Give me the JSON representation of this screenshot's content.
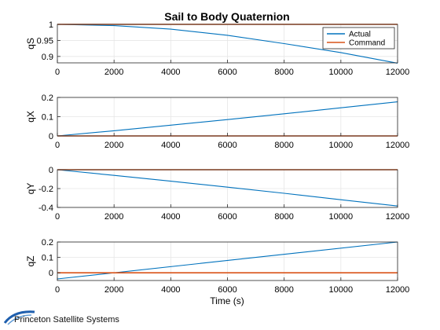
{
  "chart_data": {
    "type": "line",
    "title": "Sail to Body Quaternion",
    "xlabel": "Time (s)",
    "xlim": [
      0,
      12000
    ],
    "x_ticks": [
      "0",
      "2000",
      "4000",
      "6000",
      "8000",
      "10000",
      "12000"
    ],
    "grid": true,
    "legend": {
      "placement": "top-right",
      "entries": [
        "Actual",
        "Command"
      ]
    },
    "series_colors": {
      "Actual": "#0072BD",
      "Command": "#D95319"
    },
    "subplots": [
      {
        "ylabel": "qS",
        "ylim": [
          0.88,
          1.0
        ],
        "y_ticks": [
          {
            "v": 0.9,
            "t": "0.9"
          },
          {
            "v": 0.95,
            "t": "0.95"
          },
          {
            "v": 1.0,
            "t": "1"
          }
        ],
        "series": [
          {
            "name": "Actual",
            "x": [
              0,
              2000,
              4000,
              6000,
              8000,
              10000,
              12000
            ],
            "values": [
              1.0,
              0.996,
              0.985,
              0.966,
              0.94,
              0.912,
              0.879
            ]
          },
          {
            "name": "Command",
            "x": [
              0,
              12000
            ],
            "values": [
              1.0,
              1.0
            ]
          }
        ]
      },
      {
        "ylabel": "qX",
        "ylim": [
          0,
          0.2
        ],
        "y_ticks": [
          {
            "v": 0,
            "t": "0"
          },
          {
            "v": 0.1,
            "t": "0.1"
          },
          {
            "v": 0.2,
            "t": "0.2"
          }
        ],
        "series": [
          {
            "name": "Actual",
            "x": [
              0,
              2000,
              4000,
              6000,
              8000,
              10000,
              12000
            ],
            "values": [
              0,
              0.027,
              0.056,
              0.085,
              0.115,
              0.146,
              0.177
            ]
          },
          {
            "name": "Command",
            "x": [
              0,
              12000
            ],
            "values": [
              0,
              0
            ]
          }
        ]
      },
      {
        "ylabel": "qY",
        "ylim": [
          -0.4,
          0
        ],
        "y_ticks": [
          {
            "v": -0.4,
            "t": "-0.4"
          },
          {
            "v": -0.2,
            "t": "-0.2"
          },
          {
            "v": 0,
            "t": "0"
          }
        ],
        "series": [
          {
            "name": "Actual",
            "x": [
              0,
              2000,
              4000,
              6000,
              8000,
              10000,
              12000
            ],
            "values": [
              0,
              -0.06,
              -0.122,
              -0.185,
              -0.25,
              -0.318,
              -0.385
            ]
          },
          {
            "name": "Command",
            "x": [
              0,
              12000
            ],
            "values": [
              0,
              0
            ]
          }
        ]
      },
      {
        "ylabel": "qZ",
        "ylim": [
          -0.05,
          0.2
        ],
        "y_ticks": [
          {
            "v": 0,
            "t": "0"
          },
          {
            "v": 0.1,
            "t": "0.1"
          },
          {
            "v": 0.2,
            "t": "0.2"
          }
        ],
        "series": [
          {
            "name": "Actual",
            "x": [
              0,
              12000
            ],
            "values": [
              -0.04,
              0.2
            ]
          },
          {
            "name": "Command",
            "x": [
              0,
              12000
            ],
            "values": [
              0,
              0
            ]
          }
        ]
      }
    ]
  },
  "footer": {
    "logo_text": "Princeton Satellite Systems"
  }
}
